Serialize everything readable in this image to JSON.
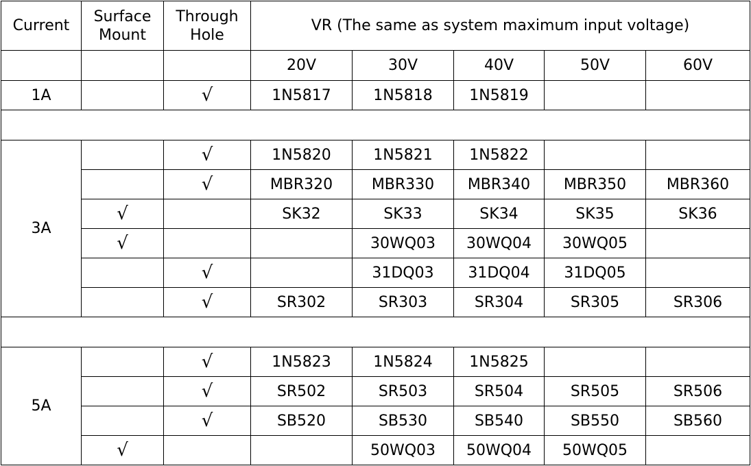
{
  "header": {
    "current": "Current",
    "surface_mount": "Surface Mount",
    "through_hole": "Through Hole",
    "vr": "VR (The same as system maximum input voltage)",
    "voltages": [
      "20V",
      "30V",
      "40V",
      "50V",
      "60V"
    ]
  },
  "groups": [
    {
      "current": "1A",
      "rows": [
        {
          "surface_mount": null,
          "through_hole": "√",
          "parts": [
            "1N5817",
            "1N5818",
            "1N5819",
            null,
            null
          ]
        }
      ]
    },
    {
      "current": "3A",
      "rows": [
        {
          "surface_mount": null,
          "through_hole": "√",
          "parts": [
            "1N5820",
            "1N5821",
            "1N5822",
            null,
            null
          ]
        },
        {
          "surface_mount": null,
          "through_hole": "√",
          "parts": [
            "MBR320",
            "MBR330",
            "MBR340",
            "MBR350",
            "MBR360"
          ]
        },
        {
          "surface_mount": "√",
          "through_hole": null,
          "parts": [
            "SK32",
            "SK33",
            "SK34",
            "SK35",
            "SK36"
          ]
        },
        {
          "surface_mount": "√",
          "through_hole": null,
          "parts": [
            null,
            "30WQ03",
            "30WQ04",
            "30WQ05",
            null
          ]
        },
        {
          "surface_mount": null,
          "through_hole": "√",
          "parts": [
            null,
            "31DQ03",
            "31DQ04",
            "31DQ05",
            null
          ]
        },
        {
          "surface_mount": null,
          "through_hole": "√",
          "parts": [
            "SR302",
            "SR303",
            "SR304",
            "SR305",
            "SR306"
          ]
        }
      ]
    },
    {
      "current": "5A",
      "rows": [
        {
          "surface_mount": null,
          "through_hole": "√",
          "parts": [
            "1N5823",
            "1N5824",
            "1N5825",
            null,
            null
          ]
        },
        {
          "surface_mount": null,
          "through_hole": "√",
          "parts": [
            "SR502",
            "SR503",
            "SR504",
            "SR505",
            "SR506"
          ]
        },
        {
          "surface_mount": null,
          "through_hole": "√",
          "parts": [
            "SB520",
            "SB530",
            "SB540",
            "SB550",
            "SB560"
          ]
        },
        {
          "surface_mount": "√",
          "through_hole": null,
          "parts": [
            null,
            "50WQ03",
            "50WQ04",
            "50WQ05",
            null
          ]
        }
      ]
    }
  ]
}
